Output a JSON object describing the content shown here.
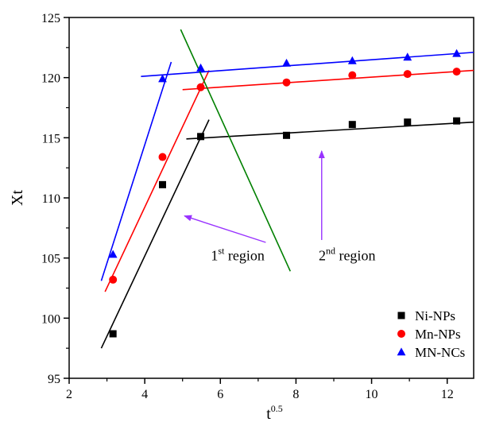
{
  "chart_data": {
    "type": "scatter",
    "xlabel": "t",
    "xlabel_sup": "0.5",
    "ylabel": "Xt",
    "xlim": [
      2,
      12.7
    ],
    "ylim": [
      95,
      125
    ],
    "x_ticks": [
      2,
      4,
      6,
      8,
      10,
      12
    ],
    "y_ticks": [
      95,
      100,
      105,
      110,
      115,
      120,
      125
    ],
    "legend_position": "bottom-right",
    "series": [
      {
        "name": "Ni-NPs",
        "marker": "square",
        "color": "#000000",
        "x": [
          3.16,
          4.47,
          5.48,
          7.75,
          9.49,
          10.95,
          12.25
        ],
        "y": [
          98.7,
          111.1,
          115.1,
          115.2,
          116.1,
          116.3,
          116.4
        ],
        "fit_lines": [
          {
            "x": [
              2.85,
              5.7
            ],
            "y": [
              97.5,
              116.5
            ]
          },
          {
            "x": [
              5.1,
              12.7
            ],
            "y": [
              114.9,
              116.3
            ]
          }
        ]
      },
      {
        "name": "Mn-NPs",
        "marker": "circle",
        "color": "#ff0000",
        "x": [
          3.16,
          4.47,
          5.48,
          7.75,
          9.49,
          10.95,
          12.25
        ],
        "y": [
          103.2,
          113.4,
          119.2,
          119.6,
          120.2,
          120.3,
          120.5
        ],
        "fit_lines": [
          {
            "x": [
              2.95,
              5.7
            ],
            "y": [
              102.2,
              120.6
            ]
          },
          {
            "x": [
              5.0,
              12.7
            ],
            "y": [
              119.0,
              120.6
            ]
          }
        ]
      },
      {
        "name": "MN-NCs",
        "marker": "triangle",
        "color": "#0000ff",
        "x": [
          3.16,
          4.47,
          5.48,
          7.75,
          9.49,
          10.95,
          12.25
        ],
        "y": [
          105.3,
          119.9,
          120.8,
          121.2,
          121.4,
          121.7,
          122.0
        ],
        "fit_lines": [
          {
            "x": [
              2.85,
              4.7
            ],
            "y": [
              103.1,
              121.3
            ]
          },
          {
            "x": [
              3.9,
              12.7
            ],
            "y": [
              120.1,
              122.1
            ]
          }
        ]
      }
    ],
    "divider_line": {
      "color": "#008000",
      "x": [
        4.95,
        7.85
      ],
      "y": [
        124.0,
        103.9
      ]
    },
    "annotations": [
      {
        "text": "1",
        "sup": "st",
        "rest": " region",
        "x": 5.75,
        "y": 104.8,
        "arrow": {
          "color": "#9933ff",
          "from": [
            7.2,
            106.3
          ],
          "to": [
            5.05,
            108.5
          ]
        }
      },
      {
        "text": "2",
        "sup": "nd",
        "rest": " region",
        "x": 8.6,
        "y": 104.8,
        "arrow": {
          "color": "#9933ff",
          "from": [
            8.68,
            106.5
          ],
          "to": [
            8.68,
            113.9
          ]
        }
      }
    ]
  }
}
